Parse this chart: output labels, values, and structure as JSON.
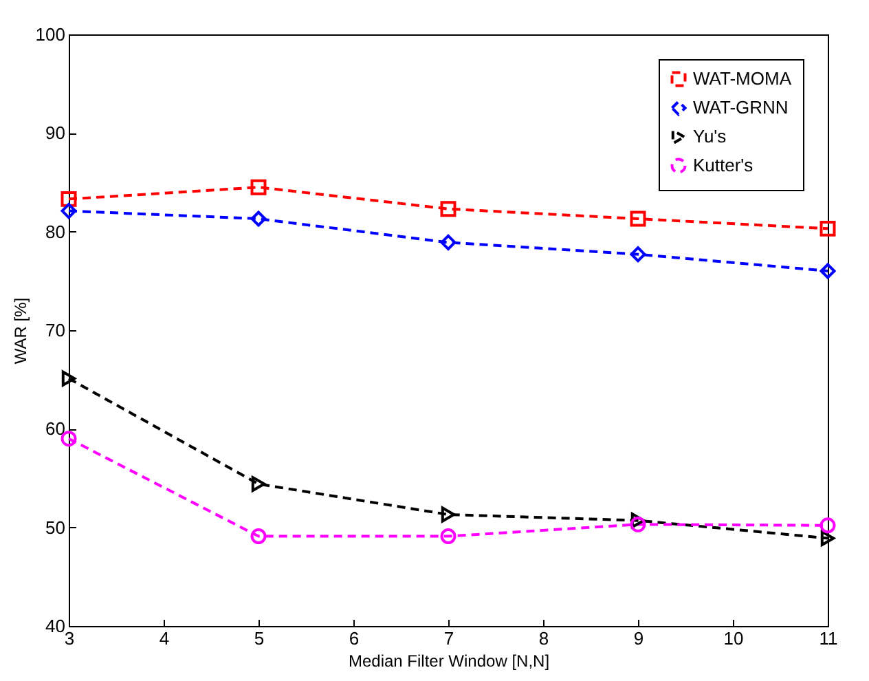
{
  "chart_data": {
    "type": "line",
    "xlabel": "Median Filter Window [N,N]",
    "ylabel": "WAR [%]",
    "x": [
      3,
      5,
      7,
      9,
      11
    ],
    "xlim": [
      3,
      11
    ],
    "xticks": [
      3,
      4,
      5,
      6,
      7,
      8,
      9,
      10,
      11
    ],
    "ylim": [
      40,
      100
    ],
    "yticks": [
      40,
      50,
      60,
      70,
      80,
      90,
      100
    ],
    "grid": false,
    "legend": "top right",
    "line_style": "dashed",
    "series": [
      {
        "name": "WAT-MOMA",
        "color": "#ff0000",
        "marker": "square",
        "values": [
          83.3,
          84.5,
          82.3,
          81.3,
          80.3
        ]
      },
      {
        "name": "WAT-GRNN",
        "color": "#0000ff",
        "marker": "diamond",
        "values": [
          82.1,
          81.3,
          78.9,
          77.7,
          76.0
        ]
      },
      {
        "name": "Yu's",
        "color": "#000000",
        "marker": "triangle",
        "values": [
          65.1,
          54.4,
          51.3,
          50.7,
          48.9
        ]
      },
      {
        "name": "Kutter's",
        "color": "#ff00ff",
        "marker": "circle",
        "values": [
          59.0,
          49.1,
          49.1,
          50.3,
          50.2
        ]
      }
    ]
  }
}
